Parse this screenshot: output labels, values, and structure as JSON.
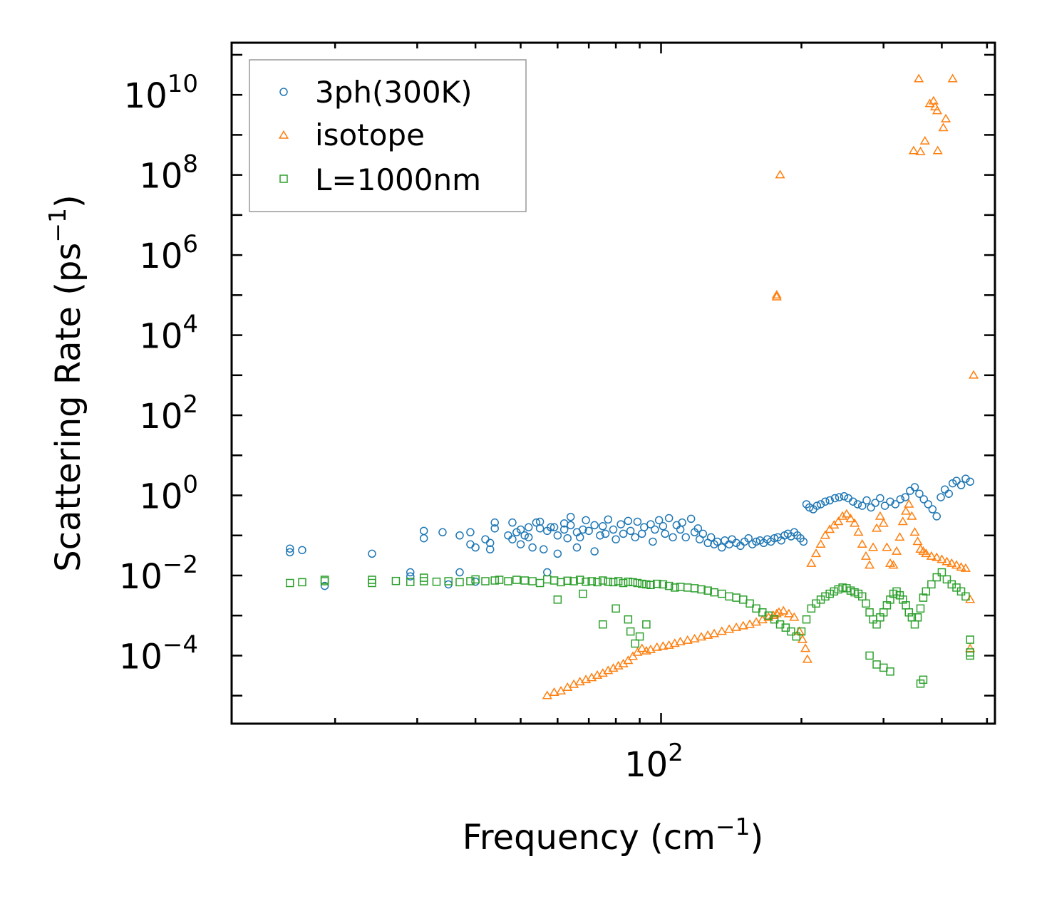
{
  "chart_data": {
    "type": "scatter",
    "title": "",
    "xlabel": "Frequency (cm",
    "xlabel_sup": "−1",
    "xlabel_end": ")",
    "ylabel": "Scattering Rate (ps",
    "ylabel_sup": "−1",
    "ylabel_end": ")",
    "xscale": "log",
    "yscale": "log",
    "xlim": [
      12,
      520
    ],
    "ylim": [
      2e-06,
      200000000000
    ],
    "x_ticks": [
      {
        "value": 100,
        "base": "10",
        "exp": "2"
      }
    ],
    "y_ticks": [
      {
        "value": 10000000000.0,
        "base": "10",
        "exp": "10"
      },
      {
        "value": 100000000.0,
        "base": "10",
        "exp": "8"
      },
      {
        "value": 1000000.0,
        "base": "10",
        "exp": "6"
      },
      {
        "value": 10000.0,
        "base": "10",
        "exp": "4"
      },
      {
        "value": 100.0,
        "base": "10",
        "exp": "2"
      },
      {
        "value": 1,
        "base": "10",
        "exp": "0"
      },
      {
        "value": 0.01,
        "base": "10",
        "exp": "−2"
      },
      {
        "value": 0.0001,
        "base": "10",
        "exp": "−4"
      }
    ],
    "legend_position": "top-left",
    "series": [
      {
        "name": "3ph(300K)",
        "marker": "circle",
        "color": "#1f77b4",
        "x": [
          16,
          16,
          17,
          19,
          24,
          29,
          29,
          31,
          31,
          34,
          35,
          37,
          37,
          39,
          39,
          40,
          40,
          42,
          43,
          43,
          44,
          44,
          47,
          48,
          48,
          49,
          50,
          50,
          51,
          52,
          52,
          53,
          54,
          55,
          55,
          56,
          57,
          57,
          58,
          59,
          60,
          60,
          62,
          62,
          63,
          64,
          64,
          66,
          66,
          67,
          68,
          69,
          70,
          72,
          72,
          74,
          75,
          76,
          77,
          79,
          80,
          82,
          83,
          85,
          86,
          88,
          89,
          91,
          92,
          95,
          96,
          97,
          99,
          101,
          102,
          104,
          106,
          108,
          110,
          111,
          113,
          116,
          118,
          120,
          121,
          123,
          126,
          128,
          130,
          132,
          135,
          137,
          140,
          142,
          145,
          148,
          151,
          154,
          157,
          160,
          163,
          166,
          169,
          172,
          175,
          178,
          181,
          184,
          187,
          190,
          193,
          196,
          199,
          202,
          205,
          208,
          212,
          216,
          220,
          225,
          230,
          236,
          241,
          247,
          252,
          258,
          264,
          270,
          276,
          282,
          288,
          295,
          302,
          310,
          318,
          326,
          334,
          342,
          350,
          358,
          366,
          374,
          382,
          390,
          398,
          406,
          414,
          422,
          430,
          440,
          450,
          460
        ],
        "y": [
          0.047,
          0.038,
          0.043,
          0.0055,
          0.035,
          0.0095,
          0.012,
          0.085,
          0.13,
          0.12,
          0.006,
          0.012,
          0.1,
          0.12,
          0.06,
          0.05,
          0.007,
          0.08,
          0.065,
          0.045,
          0.15,
          0.21,
          0.1,
          0.08,
          0.21,
          0.12,
          0.14,
          0.06,
          0.1,
          0.09,
          0.16,
          0.05,
          0.21,
          0.22,
          0.15,
          0.045,
          0.13,
          0.012,
          0.16,
          0.16,
          0.035,
          0.1,
          0.14,
          0.2,
          0.085,
          0.18,
          0.29,
          0.12,
          0.05,
          0.09,
          0.14,
          0.24,
          0.13,
          0.04,
          0.18,
          0.1,
          0.17,
          0.11,
          0.25,
          0.14,
          0.08,
          0.19,
          0.11,
          0.23,
          0.13,
          0.09,
          0.22,
          0.11,
          0.16,
          0.19,
          0.07,
          0.14,
          0.24,
          0.17,
          0.11,
          0.27,
          0.09,
          0.18,
          0.14,
          0.21,
          0.09,
          0.26,
          0.12,
          0.15,
          0.08,
          0.11,
          0.065,
          0.09,
          0.06,
          0.07,
          0.05,
          0.075,
          0.06,
          0.08,
          0.065,
          0.055,
          0.07,
          0.085,
          0.06,
          0.07,
          0.075,
          0.065,
          0.08,
          0.07,
          0.085,
          0.09,
          0.075,
          0.1,
          0.11,
          0.095,
          0.12,
          0.1,
          0.085,
          0.07,
          0.6,
          0.5,
          0.45,
          0.55,
          0.6,
          0.7,
          0.75,
          0.85,
          0.9,
          0.95,
          0.85,
          0.7,
          0.6,
          0.55,
          0.75,
          0.5,
          0.65,
          0.85,
          0.55,
          0.7,
          0.6,
          0.8,
          0.9,
          1.3,
          1.6,
          1.1,
          0.8,
          0.6,
          0.45,
          0.3,
          0.9,
          1.4,
          1.1,
          2.0,
          2.3,
          1.8,
          2.6,
          2.2
        ]
      },
      {
        "name": "isotope",
        "marker": "triangle",
        "color": "#ff7f0e",
        "x": [
          57,
          59,
          61,
          63,
          65,
          67,
          69,
          71,
          73,
          75,
          77,
          79,
          81,
          83,
          85,
          87,
          89,
          91,
          93,
          95,
          98,
          101,
          104,
          107,
          110,
          114,
          118,
          122,
          126,
          130,
          135,
          140,
          145,
          150,
          155,
          160,
          165,
          170,
          174,
          177,
          179,
          183,
          188,
          193,
          198,
          201,
          204,
          206,
          210,
          215,
          220,
          225,
          230,
          235,
          240,
          245,
          250,
          255,
          260,
          265,
          270,
          275,
          280,
          285,
          290,
          295,
          300,
          305,
          310,
          315,
          320,
          325,
          330,
          335,
          340,
          345,
          350,
          355,
          360,
          365,
          370,
          380,
          390,
          400,
          410,
          420,
          430,
          440,
          450,
          460,
          460,
          177,
          180,
          177,
          348,
          360,
          392,
          357,
          368,
          377,
          384,
          391,
          387,
          403,
          408,
          422,
          468
        ],
        "y": [
          1e-05,
          1.2e-05,
          1.3e-05,
          1.6e-05,
          1.9e-05,
          2.2e-05,
          2.5e-05,
          2.8e-05,
          3.2e-05,
          3.6e-05,
          4.2e-05,
          4.8e-05,
          5.5e-05,
          6.2e-05,
          7.5e-05,
          9.5e-05,
          0.00012,
          0.00015,
          0.00013,
          0.00014,
          0.00016,
          0.00017,
          0.00018,
          0.0002,
          0.00022,
          0.00024,
          0.00026,
          0.00029,
          0.00032,
          0.00035,
          0.0004,
          0.00045,
          0.0005,
          0.00055,
          0.0006,
          0.00068,
          0.00078,
          0.0009,
          0.001,
          0.0011,
          0.0012,
          0.0013,
          0.0011,
          0.0009,
          0.0004,
          0.00025,
          0.00015,
          8e-05,
          0.02,
          0.035,
          0.06,
          0.1,
          0.14,
          0.18,
          0.22,
          0.3,
          0.34,
          0.26,
          0.2,
          0.12,
          0.06,
          0.03,
          0.018,
          0.05,
          0.15,
          0.3,
          0.2,
          0.05,
          0.02,
          0.018,
          0.04,
          0.09,
          0.22,
          0.4,
          0.6,
          0.3,
          0.12,
          0.07,
          0.045,
          0.04,
          0.035,
          0.03,
          0.028,
          0.025,
          0.022,
          0.02,
          0.018,
          0.016,
          0.015,
          0.0025,
          0.00015,
          100000,
          100000000,
          90000,
          400000000,
          380000000,
          400000000,
          25000000000,
          700000000,
          6000000000,
          7000000000,
          4000000000,
          5000000000,
          1500000000,
          2500000000,
          25000000000,
          1000
        ]
      },
      {
        "name": "L=1000nm",
        "marker": "square",
        "color": "#2ca02c",
        "x": [
          16,
          17,
          19,
          19,
          24,
          24,
          27,
          29,
          31,
          31,
          33,
          35,
          37,
          39,
          40,
          42,
          44,
          45,
          47,
          49,
          51,
          53,
          55,
          57,
          59,
          61,
          63,
          65,
          67,
          69,
          71,
          73,
          75,
          77,
          79,
          81,
          83,
          85,
          87,
          89,
          91,
          93,
          95,
          98,
          101,
          104,
          107,
          110,
          114,
          118,
          122,
          126,
          130,
          135,
          140,
          145,
          150,
          155,
          160,
          165,
          170,
          175,
          180,
          185,
          190,
          195,
          200,
          205,
          210,
          215,
          220,
          225,
          230,
          235,
          240,
          245,
          250,
          255,
          260,
          265,
          270,
          275,
          280,
          285,
          290,
          295,
          300,
          305,
          310,
          315,
          320,
          325,
          330,
          335,
          340,
          345,
          350,
          355,
          360,
          365,
          370,
          380,
          390,
          400,
          410,
          420,
          430,
          440,
          450,
          460,
          460,
          460,
          75,
          80,
          85,
          86,
          88,
          90,
          93,
          60,
          68,
          300,
          310,
          290,
          360,
          365,
          280
        ],
        "y": [
          0.0065,
          0.0068,
          0.0072,
          0.0078,
          0.0065,
          0.0078,
          0.0073,
          0.0069,
          0.0072,
          0.0088,
          0.007,
          0.0072,
          0.0068,
          0.0072,
          0.008,
          0.0072,
          0.0075,
          0.0078,
          0.0072,
          0.0078,
          0.0075,
          0.0072,
          0.0065,
          0.008,
          0.0075,
          0.0068,
          0.0074,
          0.0072,
          0.0078,
          0.007,
          0.0072,
          0.0068,
          0.0075,
          0.007,
          0.0068,
          0.0072,
          0.0065,
          0.007,
          0.0068,
          0.0065,
          0.0062,
          0.006,
          0.0058,
          0.0062,
          0.006,
          0.0055,
          0.005,
          0.0052,
          0.005,
          0.0048,
          0.0045,
          0.0042,
          0.0038,
          0.0035,
          0.003,
          0.0028,
          0.0025,
          0.002,
          0.0015,
          0.0012,
          0.001,
          0.0008,
          0.0006,
          0.0005,
          0.0004,
          0.0003,
          0.0004,
          0.0008,
          0.0015,
          0.002,
          0.0025,
          0.003,
          0.0035,
          0.004,
          0.0045,
          0.005,
          0.0048,
          0.0042,
          0.0038,
          0.0035,
          0.003,
          0.002,
          0.0012,
          0.0008,
          0.0006,
          0.0009,
          0.0012,
          0.0018,
          0.0025,
          0.0035,
          0.004,
          0.0032,
          0.0025,
          0.0018,
          0.0012,
          0.0009,
          0.0006,
          0.0009,
          0.0015,
          0.0028,
          0.004,
          0.006,
          0.009,
          0.012,
          0.008,
          0.006,
          0.005,
          0.004,
          0.003,
          0.00025,
          0.00012,
          0.0001,
          0.0006,
          0.0015,
          0.0008,
          0.0004,
          0.0002,
          0.0003,
          0.0006,
          0.0025,
          0.0035,
          5e-05,
          4e-05,
          6e-05,
          2e-05,
          2.5e-05,
          0.0001
        ]
      }
    ]
  }
}
